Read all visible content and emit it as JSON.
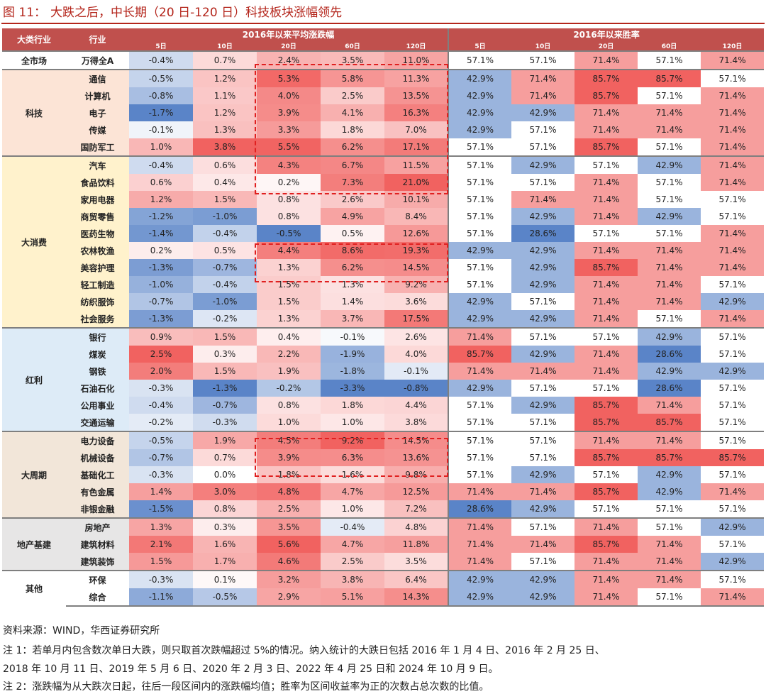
{
  "title": {
    "figure": "图 11：",
    "text": "大跌之后，中长期（20 日-120 日）科技板块涨幅领先"
  },
  "header": {
    "col_category": "大类行业",
    "col_industry": "行业",
    "group_avg": "2016年以来平均涨跌幅",
    "group_win": "2016年以来胜率",
    "periods": [
      "5日",
      "10日",
      "20日",
      "60日",
      "120日"
    ]
  },
  "colors": {
    "header_bg": "#c0504d",
    "title": "#b4261c",
    "highlight_box": "#e02020"
  },
  "groups": [
    {
      "name": "全市场",
      "bg": "#ffffff",
      "rows": [
        {
          "name": "万得全A",
          "avg": [
            "-0.4%",
            "0.7%",
            "2.4%",
            "3.5%",
            "11.0%"
          ],
          "win": [
            "57.1%",
            "57.1%",
            "71.4%",
            "57.1%",
            "71.4%"
          ]
        }
      ]
    },
    {
      "name": "科技",
      "bg": "#fce4d6",
      "rows": [
        {
          "name": "通信",
          "avg": [
            "-0.5%",
            "1.2%",
            "5.3%",
            "5.8%",
            "11.3%"
          ],
          "win": [
            "42.9%",
            "71.4%",
            "85.7%",
            "85.7%",
            "57.1%"
          ]
        },
        {
          "name": "计算机",
          "avg": [
            "-0.8%",
            "1.1%",
            "4.0%",
            "2.5%",
            "13.5%"
          ],
          "win": [
            "42.9%",
            "71.4%",
            "85.7%",
            "57.1%",
            "71.4%"
          ]
        },
        {
          "name": "电子",
          "avg": [
            "-1.7%",
            "1.2%",
            "3.9%",
            "4.1%",
            "16.3%"
          ],
          "win": [
            "42.9%",
            "42.9%",
            "71.4%",
            "71.4%",
            "71.4%"
          ]
        },
        {
          "name": "传媒",
          "avg": [
            "-0.1%",
            "1.3%",
            "3.3%",
            "1.8%",
            "7.0%"
          ],
          "win": [
            "42.9%",
            "57.1%",
            "71.4%",
            "71.4%",
            "71.4%"
          ]
        },
        {
          "name": "国防军工",
          "avg": [
            "1.0%",
            "3.8%",
            "5.5%",
            "6.2%",
            "17.1%"
          ],
          "win": [
            "57.1%",
            "57.1%",
            "85.7%",
            "57.1%",
            "71.4%"
          ]
        }
      ]
    },
    {
      "name": "大消费",
      "bg": "#fff2cc",
      "rows": [
        {
          "name": "汽车",
          "avg": [
            "-0.4%",
            "0.6%",
            "4.3%",
            "6.7%",
            "11.5%"
          ],
          "win": [
            "57.1%",
            "42.9%",
            "57.1%",
            "42.9%",
            "71.4%"
          ]
        },
        {
          "name": "食品饮料",
          "avg": [
            "0.6%",
            "0.4%",
            "0.2%",
            "7.3%",
            "21.0%"
          ],
          "win": [
            "57.1%",
            "57.1%",
            "71.4%",
            "57.1%",
            "71.4%"
          ]
        },
        {
          "name": "家用电器",
          "avg": [
            "1.2%",
            "1.5%",
            "0.8%",
            "2.6%",
            "10.1%"
          ],
          "win": [
            "57.1%",
            "71.4%",
            "71.4%",
            "57.1%",
            "57.1%"
          ]
        },
        {
          "name": "商贸零售",
          "avg": [
            "-1.2%",
            "-1.0%",
            "0.8%",
            "4.9%",
            "8.4%"
          ],
          "win": [
            "57.1%",
            "42.9%",
            "71.4%",
            "42.9%",
            "57.1%"
          ]
        },
        {
          "name": "医药生物",
          "avg": [
            "-1.4%",
            "-0.4%",
            "-0.5%",
            "0.5%",
            "12.6%"
          ],
          "win": [
            "57.1%",
            "28.6%",
            "57.1%",
            "57.1%",
            "71.4%"
          ]
        },
        {
          "name": "农林牧渔",
          "avg": [
            "0.2%",
            "0.5%",
            "4.4%",
            "8.6%",
            "19.3%"
          ],
          "win": [
            "42.9%",
            "42.9%",
            "71.4%",
            "71.4%",
            "71.4%"
          ]
        },
        {
          "name": "美容护理",
          "avg": [
            "-1.3%",
            "-0.7%",
            "1.3%",
            "6.2%",
            "14.5%"
          ],
          "win": [
            "57.1%",
            "42.9%",
            "85.7%",
            "71.4%",
            "71.4%"
          ]
        },
        {
          "name": "轻工制造",
          "avg": [
            "-1.0%",
            "-0.4%",
            "1.5%",
            "1.3%",
            "9.2%"
          ],
          "win": [
            "57.1%",
            "42.9%",
            "71.4%",
            "71.4%",
            "57.1%"
          ]
        },
        {
          "name": "纺织服饰",
          "avg": [
            "-0.7%",
            "-1.0%",
            "1.5%",
            "1.4%",
            "3.6%"
          ],
          "win": [
            "42.9%",
            "57.1%",
            "71.4%",
            "71.4%",
            "42.9%"
          ]
        },
        {
          "name": "社会服务",
          "avg": [
            "-1.3%",
            "-0.2%",
            "1.3%",
            "3.7%",
            "17.5%"
          ],
          "win": [
            "42.9%",
            "42.9%",
            "71.4%",
            "57.1%",
            "71.4%"
          ]
        }
      ]
    },
    {
      "name": "红利",
      "bg": "#ddebf7",
      "rows": [
        {
          "name": "银行",
          "avg": [
            "0.9%",
            "1.5%",
            "0.4%",
            "-0.1%",
            "2.6%"
          ],
          "win": [
            "71.4%",
            "57.1%",
            "57.1%",
            "42.9%",
            "57.1%"
          ]
        },
        {
          "name": "煤炭",
          "avg": [
            "2.5%",
            "0.3%",
            "2.2%",
            "-1.9%",
            "4.0%"
          ],
          "win": [
            "85.7%",
            "42.9%",
            "71.4%",
            "28.6%",
            "57.1%"
          ]
        },
        {
          "name": "钢铁",
          "avg": [
            "2.0%",
            "1.5%",
            "1.9%",
            "-1.8%",
            "-0.1%"
          ],
          "win": [
            "71.4%",
            "71.4%",
            "71.4%",
            "42.9%",
            "42.9%"
          ]
        },
        {
          "name": "石油石化",
          "avg": [
            "-0.3%",
            "-1.3%",
            "-0.2%",
            "-3.3%",
            "-0.8%"
          ],
          "win": [
            "42.9%",
            "57.1%",
            "57.1%",
            "28.6%",
            "57.1%"
          ]
        },
        {
          "name": "公用事业",
          "avg": [
            "-0.4%",
            "-0.7%",
            "0.8%",
            "1.8%",
            "4.4%"
          ],
          "win": [
            "57.1%",
            "42.9%",
            "85.7%",
            "71.4%",
            "57.1%"
          ]
        },
        {
          "name": "交通运输",
          "avg": [
            "-0.2%",
            "-0.3%",
            "1.0%",
            "1.0%",
            "3.8%"
          ],
          "win": [
            "57.1%",
            "57.1%",
            "85.7%",
            "85.7%",
            "57.1%"
          ]
        }
      ]
    },
    {
      "name": "大周期",
      "bg": "#f2e6d9",
      "rows": [
        {
          "name": "电力设备",
          "avg": [
            "-0.5%",
            "1.9%",
            "4.5%",
            "9.2%",
            "14.5%"
          ],
          "win": [
            "57.1%",
            "57.1%",
            "71.4%",
            "71.4%",
            "57.1%"
          ]
        },
        {
          "name": "机械设备",
          "avg": [
            "-0.7%",
            "0.7%",
            "3.9%",
            "6.3%",
            "13.6%"
          ],
          "win": [
            "57.1%",
            "57.1%",
            "85.7%",
            "85.7%",
            "85.7%"
          ]
        },
        {
          "name": "基础化工",
          "avg": [
            "-0.3%",
            "0.0%",
            "1.8%",
            "1.6%",
            "9.8%"
          ],
          "win": [
            "57.1%",
            "42.9%",
            "57.1%",
            "42.9%",
            "57.1%"
          ]
        },
        {
          "name": "有色金属",
          "avg": [
            "1.4%",
            "3.0%",
            "4.8%",
            "4.7%",
            "12.5%"
          ],
          "win": [
            "71.4%",
            "71.4%",
            "85.7%",
            "42.9%",
            "71.4%"
          ]
        },
        {
          "name": "非银金融",
          "avg": [
            "-1.5%",
            "0.8%",
            "2.5%",
            "1.0%",
            "7.2%"
          ],
          "win": [
            "28.6%",
            "42.9%",
            "57.1%",
            "57.1%",
            "57.1%"
          ]
        }
      ]
    },
    {
      "name": "地产基建",
      "bg": "#e7e6e6",
      "rows": [
        {
          "name": "房地产",
          "avg": [
            "1.3%",
            "0.3%",
            "3.5%",
            "-0.4%",
            "4.8%"
          ],
          "win": [
            "71.4%",
            "57.1%",
            "71.4%",
            "57.1%",
            "42.9%"
          ]
        },
        {
          "name": "建筑材料",
          "avg": [
            "2.1%",
            "1.6%",
            "5.6%",
            "4.7%",
            "11.8%"
          ],
          "win": [
            "71.4%",
            "71.4%",
            "85.7%",
            "71.4%",
            "57.1%"
          ]
        },
        {
          "name": "建筑装饰",
          "avg": [
            "1.5%",
            "1.7%",
            "4.6%",
            "2.5%",
            "3.5%"
          ],
          "win": [
            "71.4%",
            "57.1%",
            "71.4%",
            "71.4%",
            "42.9%"
          ]
        }
      ]
    },
    {
      "name": "其他",
      "bg": "#ffffff",
      "rows": [
        {
          "name": "环保",
          "avg": [
            "-0.3%",
            "0.1%",
            "3.2%",
            "3.8%",
            "6.4%"
          ],
          "win": [
            "42.9%",
            "42.9%",
            "71.4%",
            "71.4%",
            "57.1%"
          ]
        },
        {
          "name": "综合",
          "avg": [
            "-1.1%",
            "-0.5%",
            "2.9%",
            "5.1%",
            "14.3%"
          ],
          "win": [
            "42.9%",
            "42.9%",
            "71.4%",
            "57.1%",
            "71.4%"
          ]
        }
      ]
    }
  ],
  "notes": {
    "source": "资料来源：WIND，华西证券研究所",
    "note1a": "注 1：若单月内包含数次单日大跌，则只取首次跌幅超过 5%的情况。纳入统计的大跌日包括 2016 年 1 月 4 日、2016 年 2 月 25 日、",
    "note1b": "2018 年 10 月 11 日、2019 年 5 月 6 日、2020 年 2 月 3 日、2022 年 4 月 25 日和 2024 年 10 月 9 日。",
    "note2": "注 2：涨跌幅为从大跌次日起，往后一段区间内的涨跌幅均值；胜率为区间收益率为正的次数占总次数的比值。"
  }
}
